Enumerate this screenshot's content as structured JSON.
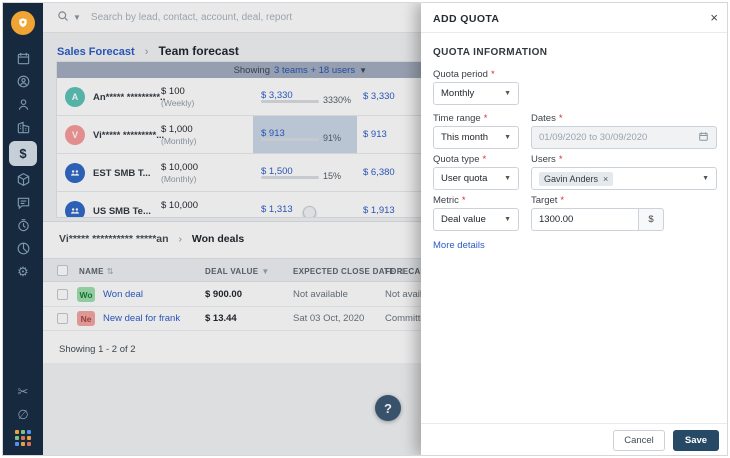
{
  "topbar": {
    "search_placeholder": "Search by lead, contact, account, deal, report"
  },
  "breadcrumb": {
    "parent": "Sales Forecast",
    "separator": "›",
    "current": "Team forecast"
  },
  "teams_table": {
    "showing_prefix": "Showing",
    "showing_link": "3 teams + 18 users",
    "rows": [
      {
        "initial": "A",
        "name": "An***** *********...",
        "quota": "$ 100",
        "period": "(Weekly)",
        "achieved": "$ 3,330",
        "percent": "3330%",
        "committed": "$ 3,330",
        "progress": 100
      },
      {
        "initial": "V",
        "name": "Vi***** *********...",
        "quota": "$ 1,000",
        "period": "(Monthly)",
        "achieved": "$ 913",
        "percent": "91%",
        "committed": "$ 913",
        "progress": 91
      },
      {
        "initial": "",
        "name": "EST SMB T...",
        "quota": "$ 10,000",
        "period": "(Monthly)",
        "achieved": "$ 1,500",
        "percent": "15%",
        "committed": "$ 6,380",
        "progress": 15
      },
      {
        "initial": "",
        "name": "US SMB Te...",
        "quota": "$ 10,000",
        "period": "",
        "achieved": "$ 1,313",
        "percent": "",
        "committed": "$ 1,913",
        "progress": 0
      }
    ]
  },
  "deals_section": {
    "breadcrumb_parent": "Vi***** ********** *****an",
    "breadcrumb_separator": "›",
    "breadcrumb_current": "Won deals",
    "columns": {
      "name": "NAME",
      "value": "DEAL VALUE",
      "close": "EXPECTED CLOSE DATE",
      "forecast": "FORECAST"
    },
    "rows": [
      {
        "badge": "Wo",
        "name": "Won deal",
        "value": "$ 900.00",
        "close": "Not available",
        "forecast": "Not available"
      },
      {
        "badge": "Ne",
        "name": "New deal for frank",
        "value": "$ 13.44",
        "close": "Sat 03 Oct, 2020",
        "forecast": "Committed"
      }
    ],
    "footer": "Showing 1 - 2 of 2"
  },
  "help_button": {
    "label": "?"
  },
  "panel": {
    "title": "ADD QUOTA",
    "close": "×",
    "section_title": "QUOTA INFORMATION",
    "quota_period": {
      "label": "Quota period",
      "value": "Monthly"
    },
    "time_range": {
      "label": "Time range",
      "value": "This month"
    },
    "dates": {
      "label": "Dates",
      "value": "01/09/2020 to 30/09/2020"
    },
    "quota_type": {
      "label": "Quota type",
      "value": "User quota"
    },
    "users": {
      "label": "Users",
      "tag": "Gavin Anders",
      "tag_remove": "×"
    },
    "metric": {
      "label": "Metric",
      "value": "Deal value"
    },
    "target": {
      "label": "Target",
      "value": "1300.00",
      "currency": "$"
    },
    "more_details": "More details",
    "cancel": "Cancel",
    "save": "Save"
  },
  "sidebar": {
    "icons": [
      "calendar",
      "leads",
      "contacts",
      "accounts",
      "deals",
      "products",
      "conversations",
      "activities",
      "analytics",
      "settings",
      "tools",
      "privacy",
      "apps"
    ],
    "active": "deals"
  },
  "colors": {
    "accent_blue": "#2c5cc5",
    "progress_green": "#3f9c46",
    "sidebar_navy": "#16293e",
    "save_navy": "#264966",
    "required_red": "#d72d30"
  }
}
